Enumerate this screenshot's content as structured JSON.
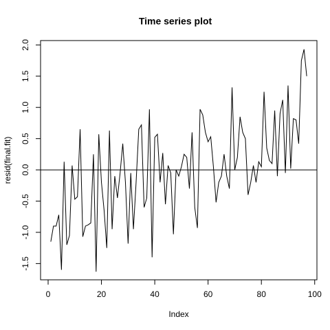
{
  "chart_data": {
    "type": "line",
    "title": "Time series plot",
    "xlabel": "Index",
    "ylabel": "resid(final.fit)",
    "x": [
      1,
      2,
      3,
      4,
      5,
      6,
      7,
      8,
      9,
      10,
      11,
      12,
      13,
      14,
      15,
      16,
      17,
      18,
      19,
      20,
      21,
      22,
      23,
      24,
      25,
      26,
      27,
      28,
      29,
      30,
      31,
      32,
      33,
      34,
      35,
      36,
      37,
      38,
      39,
      40,
      41,
      42,
      43,
      44,
      45,
      46,
      47,
      48,
      49,
      50,
      51,
      52,
      53,
      54,
      55,
      56,
      57,
      58,
      59,
      60,
      61,
      62,
      63,
      64,
      65,
      66,
      67,
      68,
      69,
      70,
      71,
      72,
      73,
      74,
      75,
      76,
      77,
      78,
      79,
      80,
      81,
      82,
      83,
      84,
      85,
      86,
      87,
      88,
      89,
      90,
      91,
      92,
      93,
      94,
      95,
      96,
      97
    ],
    "series": [
      {
        "color": "#000000",
        "values": [
          -1.15,
          -0.9,
          -0.9,
          -0.72,
          -1.6,
          0.13,
          -1.2,
          -1.05,
          0.07,
          -0.47,
          -0.43,
          0.65,
          -1.07,
          -0.9,
          -0.88,
          -0.85,
          0.25,
          -1.63,
          0.57,
          -0.2,
          -0.65,
          -1.25,
          0.63,
          -0.95,
          -0.1,
          -0.45,
          -0.05,
          0.42,
          -0.2,
          -1.18,
          -0.05,
          -0.95,
          -0.2,
          0.65,
          0.72,
          -0.6,
          -0.45,
          0.97,
          -1.4,
          0.52,
          0.57,
          -0.2,
          0.27,
          -0.55,
          0.07,
          -0.05,
          -1.03,
          0.0,
          -0.1,
          0.05,
          0.25,
          0.2,
          -0.3,
          0.6,
          -0.6,
          -0.93,
          0.97,
          0.88,
          0.6,
          0.45,
          0.53,
          0.05,
          -0.52,
          -0.2,
          -0.1,
          0.25,
          -0.1,
          -0.3,
          1.32,
          0.0,
          0.2,
          0.85,
          0.6,
          0.5,
          -0.4,
          -0.2,
          0.07,
          -0.2,
          0.13,
          0.05,
          1.25,
          0.35,
          0.15,
          0.1,
          0.95,
          -0.1,
          0.9,
          1.12,
          -0.05,
          1.35,
          0.02,
          0.82,
          0.8,
          0.42,
          1.75,
          1.93,
          1.5
        ]
      }
    ],
    "hline": 0,
    "xlim": [
      -2.84,
      100.84
    ],
    "ylim": [
      -1.76,
      2.07
    ],
    "xticks": [
      0,
      20,
      40,
      60,
      80,
      100
    ],
    "yticks": [
      -1.5,
      {
        "value": -1,
        "label": "-1.0"
      },
      -0.5,
      {
        "value": 0,
        "label": "0.0"
      },
      0.5,
      {
        "value": 1,
        "label": "1.0"
      },
      1.5,
      {
        "value": 2,
        "label": "2.0"
      }
    ]
  }
}
